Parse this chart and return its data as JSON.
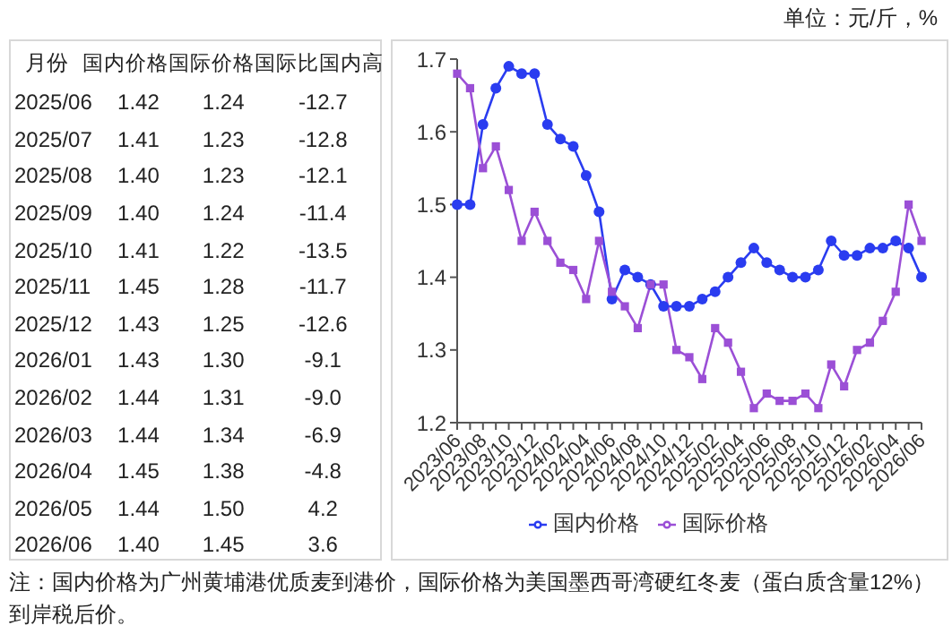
{
  "chart_data": [
    {
      "type": "other",
      "ylabel": "月份",
      "categories": [
        "国内价格",
        "国际价格",
        "国际比国内高"
      ],
      "y_categories": [
        "2025/06",
        "2025/07",
        "2025/08",
        "2025/09",
        "2025/10",
        "2025/11",
        "2025/12",
        "2026/01",
        "2026/02",
        "2026/03",
        "2026/04",
        "2026/05",
        "2026/06"
      ],
      "cell_labels": [
        [
          "1.42",
          "1.24",
          "-12.7"
        ],
        [
          "1.41",
          "1.23",
          "-12.8"
        ],
        [
          "1.40",
          "1.23",
          "-12.1"
        ],
        [
          "1.40",
          "1.24",
          "-11.4"
        ],
        [
          "1.41",
          "1.22",
          "-13.5"
        ],
        [
          "1.45",
          "1.28",
          "-11.7"
        ],
        [
          "1.43",
          "1.25",
          "-12.6"
        ],
        [
          "1.43",
          "1.30",
          "-9.1"
        ],
        [
          "1.44",
          "1.31",
          "-9.0"
        ],
        [
          "1.44",
          "1.34",
          "-6.9"
        ],
        [
          "1.45",
          "1.38",
          "-4.8"
        ],
        [
          "1.44",
          "1.50",
          "4.2"
        ],
        [
          "1.40",
          "1.45",
          "3.6"
        ]
      ]
    },
    {
      "type": "line",
      "subtitle": "单位：元/斤，%",
      "annotations": [
        "注：国内价格为广州黄埔港优质麦到港价，国际价格为美国墨西哥湾硬红冬麦（蛋白质含量12%）到岸税后价。"
      ],
      "categories": [
        "2023/06",
        null,
        "2023/08",
        null,
        "2023/10",
        null,
        "2023/12",
        null,
        "2024/02",
        null,
        "2024/04",
        null,
        "2024/06",
        null,
        "2024/08",
        null,
        "2024/10",
        null,
        "2024/12",
        null,
        "2025/02",
        null,
        "2025/04",
        null,
        "2025/06",
        null,
        "2025/08",
        null,
        "2025/10",
        null,
        "2025/12",
        null,
        "2026/02",
        null,
        "2026/04",
        null,
        "2026/06"
      ],
      "series": [
        {
          "name": "国内价格",
          "color": "#2a3cf0",
          "marker": "circle",
          "values": [
            1.5,
            1.5,
            1.61,
            1.66,
            1.69,
            1.68,
            1.68,
            1.61,
            1.59,
            1.58,
            1.54,
            1.49,
            1.37,
            1.41,
            1.4,
            1.39,
            1.36,
            1.36,
            1.36,
            1.37,
            1.38,
            1.4,
            1.42,
            1.44,
            1.42,
            1.41,
            1.4,
            1.4,
            1.41,
            1.45,
            1.43,
            1.43,
            1.44,
            1.44,
            1.45,
            1.44,
            1.4
          ]
        },
        {
          "name": "国际价格",
          "color": "#9b4fd6",
          "marker": "square",
          "values": [
            1.68,
            1.66,
            1.55,
            1.58,
            1.52,
            1.45,
            1.49,
            1.45,
            1.42,
            1.41,
            1.37,
            1.45,
            1.38,
            1.36,
            1.33,
            1.39,
            1.39,
            1.3,
            1.29,
            1.26,
            1.33,
            1.31,
            1.27,
            1.22,
            1.24,
            1.23,
            1.23,
            1.24,
            1.22,
            1.28,
            1.25,
            1.3,
            1.31,
            1.34,
            1.38,
            1.5,
            1.45
          ]
        }
      ],
      "ylim": [
        1.2,
        1.7
      ],
      "yticks": [
        1.2,
        1.3,
        1.4,
        1.5,
        1.6,
        1.7
      ],
      "legend": "bottom"
    }
  ]
}
